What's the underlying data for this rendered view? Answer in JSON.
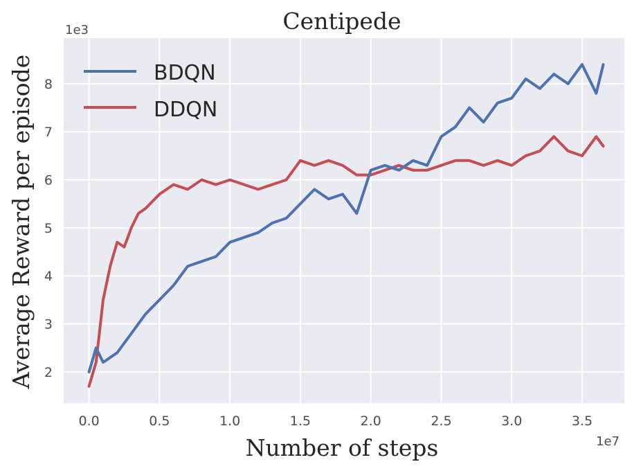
{
  "chart_data": {
    "type": "line",
    "title": "Centipede",
    "xlabel": "Number of steps",
    "ylabel": "Average Reward per episode",
    "x_offset_label": "1e7",
    "y_offset_label": "1e3",
    "xlim": [
      -0.18,
      3.8
    ],
    "ylim": [
      1.35,
      8.95
    ],
    "x_ticks": [
      0.0,
      0.5,
      1.0,
      1.5,
      2.0,
      2.5,
      3.0,
      3.5
    ],
    "x_tick_labels": [
      "0.0",
      "0.5",
      "1.0",
      "1.5",
      "2.0",
      "2.5",
      "3.0",
      "3.5"
    ],
    "y_ticks": [
      2,
      3,
      4,
      5,
      6,
      7,
      8
    ],
    "y_tick_labels": [
      "2",
      "3",
      "4",
      "5",
      "6",
      "7",
      "8"
    ],
    "grid": true,
    "legend_position": "top-left",
    "series": [
      {
        "name": "BDQN",
        "color": "#4c72b0",
        "x": [
          0.0,
          0.05,
          0.1,
          0.2,
          0.3,
          0.4,
          0.5,
          0.6,
          0.7,
          0.8,
          0.9,
          1.0,
          1.1,
          1.2,
          1.3,
          1.4,
          1.5,
          1.6,
          1.7,
          1.8,
          1.9,
          2.0,
          2.1,
          2.2,
          2.3,
          2.4,
          2.5,
          2.6,
          2.7,
          2.8,
          2.9,
          3.0,
          3.1,
          3.2,
          3.3,
          3.4,
          3.5,
          3.6,
          3.65
        ],
        "y": [
          2.0,
          2.5,
          2.2,
          2.4,
          2.8,
          3.2,
          3.5,
          3.8,
          4.2,
          4.3,
          4.4,
          4.7,
          4.8,
          4.9,
          5.1,
          5.2,
          5.5,
          5.8,
          5.6,
          5.7,
          5.3,
          6.2,
          6.3,
          6.2,
          6.4,
          6.3,
          6.9,
          7.1,
          7.5,
          7.2,
          7.6,
          7.7,
          8.1,
          7.9,
          8.2,
          8.0,
          8.4,
          7.8,
          8.4
        ]
      },
      {
        "name": "DDQN",
        "color": "#c44e52",
        "x": [
          0.0,
          0.05,
          0.1,
          0.15,
          0.2,
          0.25,
          0.3,
          0.35,
          0.4,
          0.5,
          0.6,
          0.7,
          0.8,
          0.9,
          1.0,
          1.1,
          1.2,
          1.3,
          1.4,
          1.5,
          1.6,
          1.7,
          1.8,
          1.9,
          2.0,
          2.1,
          2.2,
          2.3,
          2.4,
          2.5,
          2.6,
          2.7,
          2.8,
          2.9,
          3.0,
          3.1,
          3.2,
          3.3,
          3.4,
          3.5,
          3.6,
          3.65
        ],
        "y": [
          1.7,
          2.2,
          3.5,
          4.2,
          4.7,
          4.6,
          5.0,
          5.3,
          5.4,
          5.7,
          5.9,
          5.8,
          6.0,
          5.9,
          6.0,
          5.9,
          5.8,
          5.9,
          6.0,
          6.4,
          6.3,
          6.4,
          6.3,
          6.1,
          6.1,
          6.2,
          6.3,
          6.2,
          6.2,
          6.3,
          6.4,
          6.4,
          6.3,
          6.4,
          6.3,
          6.5,
          6.6,
          6.9,
          6.6,
          6.5,
          6.9,
          6.7
        ]
      }
    ]
  }
}
